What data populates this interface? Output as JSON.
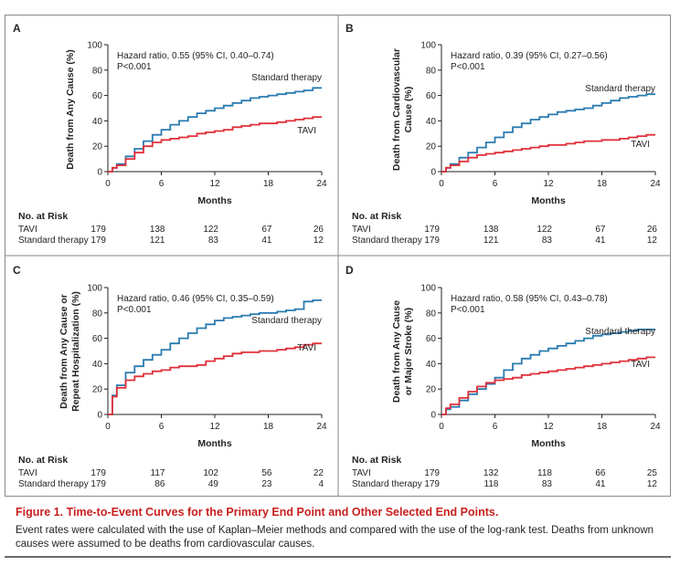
{
  "caption": {
    "title": "Figure 1. Time-to-Event Curves for the Primary End Point and Other Selected End Points.",
    "text": "Event rates were calculated with the use of Kaplan–Meier methods and compared with the use of the log-rank test. Deaths from unknown causes were assumed to be deaths from cardiovascular causes."
  },
  "colors": {
    "tavi": "#e0303a",
    "standard": "#2a7bb0"
  },
  "chart_data": [
    {
      "panel": "A",
      "type": "line",
      "ylabel": [
        "Death from Any Cause (%)"
      ],
      "xlabel": "Months",
      "xlim": [
        0,
        24
      ],
      "ylim": [
        0,
        100
      ],
      "xticks": [
        0,
        6,
        12,
        18,
        24
      ],
      "yticks": [
        0,
        20,
        40,
        60,
        80,
        100
      ],
      "annotation": [
        "Hazard ratio, 0.55 (95% CI, 0.40–0.74)",
        "P<0.001"
      ],
      "series": [
        {
          "name": "Standard therapy",
          "color": "#2a7bb0",
          "x": [
            0,
            0.5,
            1,
            2,
            3,
            4,
            5,
            6,
            7,
            8,
            9,
            10,
            11,
            12,
            13,
            14,
            15,
            16,
            17,
            18,
            19,
            20,
            21,
            22,
            23,
            24
          ],
          "y": [
            0,
            3,
            6,
            12,
            18,
            24,
            29,
            33,
            37,
            40,
            43,
            46,
            48,
            50,
            52,
            54,
            56,
            58,
            59,
            60,
            61,
            62,
            63,
            64,
            66,
            66
          ]
        },
        {
          "name": "TAVI",
          "color": "#e0303a",
          "x": [
            0,
            0.5,
            1,
            2,
            3,
            4,
            5,
            6,
            7,
            8,
            9,
            10,
            11,
            12,
            13,
            14,
            15,
            16,
            17,
            18,
            19,
            20,
            21,
            22,
            23,
            24
          ],
          "y": [
            0,
            3,
            5,
            10,
            15,
            20,
            23,
            25,
            26,
            27,
            28,
            30,
            31,
            32,
            33,
            35,
            36,
            37,
            38,
            38,
            39,
            40,
            41,
            42,
            43,
            43
          ]
        }
      ],
      "risk": {
        "header": "No. at Risk",
        "rows": [
          {
            "label": "TAVI",
            "values": [
              "179",
              "138",
              "122",
              "67",
              "26"
            ]
          },
          {
            "label": "Standard therapy",
            "values": [
              "179",
              "121",
              "83",
              "41",
              "12"
            ]
          }
        ]
      }
    },
    {
      "panel": "B",
      "type": "line",
      "ylabel": [
        "Death from Cardiovascular",
        "Cause (%)"
      ],
      "xlabel": "Months",
      "xlim": [
        0,
        24
      ],
      "ylim": [
        0,
        100
      ],
      "xticks": [
        0,
        6,
        12,
        18,
        24
      ],
      "yticks": [
        0,
        20,
        40,
        60,
        80,
        100
      ],
      "annotation": [
        "Hazard ratio, 0.39 (95% CI, 0.27–0.56)",
        "P<0.001"
      ],
      "series": [
        {
          "name": "Standard therapy",
          "color": "#2a7bb0",
          "x": [
            0,
            0.5,
            1,
            2,
            3,
            4,
            5,
            6,
            7,
            8,
            9,
            10,
            11,
            12,
            13,
            14,
            15,
            16,
            17,
            18,
            19,
            20,
            21,
            22,
            23,
            24
          ],
          "y": [
            0,
            3,
            6,
            11,
            15,
            19,
            23,
            27,
            31,
            35,
            38,
            41,
            43,
            45,
            47,
            48,
            49,
            50,
            52,
            54,
            56,
            58,
            59,
            60,
            61,
            61
          ]
        },
        {
          "name": "TAVI",
          "color": "#e0303a",
          "x": [
            0,
            0.5,
            1,
            2,
            3,
            4,
            5,
            6,
            7,
            8,
            9,
            10,
            11,
            12,
            13,
            14,
            15,
            16,
            17,
            18,
            19,
            20,
            21,
            22,
            23,
            24
          ],
          "y": [
            0,
            3,
            5,
            8,
            11,
            13,
            14,
            15,
            16,
            17,
            18,
            19,
            20,
            21,
            21,
            22,
            23,
            24,
            24,
            25,
            25,
            26,
            27,
            28,
            29,
            29
          ]
        }
      ],
      "risk": {
        "header": "No. at Risk",
        "rows": [
          {
            "label": "TAVI",
            "values": [
              "179",
              "138",
              "122",
              "67",
              "26"
            ]
          },
          {
            "label": "Standard therapy",
            "values": [
              "179",
              "121",
              "83",
              "41",
              "12"
            ]
          }
        ]
      }
    },
    {
      "panel": "C",
      "type": "line",
      "ylabel": [
        "Death from Any Cause or",
        "Repeat Hospitalization (%)"
      ],
      "xlabel": "Months",
      "xlim": [
        0,
        24
      ],
      "ylim": [
        0,
        100
      ],
      "xticks": [
        0,
        6,
        12,
        18,
        24
      ],
      "yticks": [
        0,
        20,
        40,
        60,
        80,
        100
      ],
      "annotation": [
        "Hazard ratio, 0.46 (95% CI, 0.35–0.59)",
        "P<0.001"
      ],
      "series": [
        {
          "name": "Standard therapy",
          "color": "#2a7bb0",
          "x": [
            0,
            0.5,
            1,
            2,
            3,
            4,
            5,
            6,
            7,
            8,
            9,
            10,
            11,
            12,
            13,
            14,
            15,
            16,
            17,
            18,
            19,
            20,
            21,
            22,
            23,
            24
          ],
          "y": [
            0,
            15,
            23,
            33,
            38,
            43,
            47,
            51,
            56,
            60,
            64,
            68,
            71,
            74,
            76,
            77,
            78,
            79,
            80,
            80,
            81,
            82,
            83,
            89,
            90,
            90
          ]
        },
        {
          "name": "TAVI",
          "color": "#e0303a",
          "x": [
            0,
            0.5,
            1,
            2,
            3,
            4,
            5,
            6,
            7,
            8,
            9,
            10,
            11,
            12,
            13,
            14,
            15,
            16,
            17,
            18,
            19,
            20,
            21,
            22,
            23,
            24
          ],
          "y": [
            0,
            14,
            21,
            27,
            30,
            32,
            34,
            35,
            37,
            38,
            38,
            39,
            42,
            44,
            46,
            48,
            49,
            49,
            50,
            50,
            51,
            52,
            53,
            55,
            56,
            56
          ]
        }
      ],
      "risk": {
        "header": "No. at Risk",
        "rows": [
          {
            "label": "TAVI",
            "values": [
              "179",
              "117",
              "102",
              "56",
              "22"
            ]
          },
          {
            "label": "Standard therapy",
            "values": [
              "179",
              "86",
              "49",
              "23",
              "4"
            ]
          }
        ]
      }
    },
    {
      "panel": "D",
      "type": "line",
      "ylabel": [
        "Death from Any Cause",
        "or Major Stroke (%)"
      ],
      "xlabel": "Months",
      "xlim": [
        0,
        24
      ],
      "ylim": [
        0,
        100
      ],
      "xticks": [
        0,
        6,
        12,
        18,
        24
      ],
      "yticks": [
        0,
        20,
        40,
        60,
        80,
        100
      ],
      "annotation": [
        "Hazard ratio, 0.58 (95% CI, 0.43–0.78)",
        "P<0.001"
      ],
      "series": [
        {
          "name": "Standard therapy",
          "color": "#2a7bb0",
          "x": [
            0,
            0.5,
            1,
            2,
            3,
            4,
            5,
            6,
            7,
            8,
            9,
            10,
            11,
            12,
            13,
            14,
            15,
            16,
            17,
            18,
            19,
            20,
            21,
            22,
            23,
            24
          ],
          "y": [
            0,
            4,
            6,
            11,
            16,
            20,
            24,
            29,
            35,
            40,
            44,
            47,
            50,
            52,
            54,
            56,
            58,
            60,
            62,
            63,
            64,
            65,
            66,
            67,
            67,
            67
          ]
        },
        {
          "name": "TAVI",
          "color": "#e0303a",
          "x": [
            0,
            0.5,
            1,
            2,
            3,
            4,
            5,
            6,
            7,
            8,
            9,
            10,
            11,
            12,
            13,
            14,
            15,
            16,
            17,
            18,
            19,
            20,
            21,
            22,
            23,
            24
          ],
          "y": [
            0,
            5,
            8,
            13,
            18,
            22,
            25,
            27,
            28,
            29,
            31,
            32,
            33,
            34,
            35,
            36,
            37,
            38,
            39,
            40,
            41,
            42,
            43,
            44,
            45,
            45
          ]
        }
      ],
      "risk": {
        "header": "No. at Risk",
        "rows": [
          {
            "label": "TAVI",
            "values": [
              "179",
              "132",
              "118",
              "66",
              "25"
            ]
          },
          {
            "label": "Standard therapy",
            "values": [
              "179",
              "118",
              "83",
              "41",
              "12"
            ]
          }
        ]
      }
    }
  ]
}
